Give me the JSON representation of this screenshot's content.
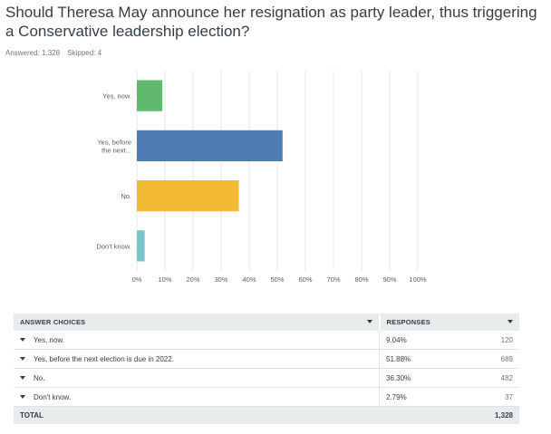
{
  "question": "Should Theresa May announce her resignation as party leader, thus triggering a Conservative leadership election?",
  "meta": {
    "answered": "Answered: 1,328",
    "skipped": "Skipped: 4"
  },
  "colors": {
    "yes_now": "#61b96e",
    "yes_before": "#507cb6",
    "no": "#f3bb33",
    "dont_know": "#76c5cb",
    "grid": "#e4e7e8"
  },
  "chart_data": {
    "type": "bar",
    "orientation": "horizontal",
    "categories": [
      [
        "Yes, now."
      ],
      [
        "Yes, before",
        "the next..."
      ],
      [
        "No."
      ],
      [
        "Don't know."
      ]
    ],
    "values": [
      9.04,
      51.88,
      36.3,
      2.79
    ],
    "colors": [
      "#61b96e",
      "#507cb6",
      "#f3bb33",
      "#76c5cb"
    ],
    "xlim": [
      0,
      100
    ],
    "xticks": [
      "0%",
      "10%",
      "20%",
      "30%",
      "40%",
      "50%",
      "60%",
      "70%",
      "80%",
      "90%",
      "100%"
    ],
    "grid": true
  },
  "table": {
    "header_choices": "ANSWER CHOICES",
    "header_responses": "RESPONSES",
    "rows": [
      {
        "choice": "Yes, now.",
        "pct": "9.04%",
        "count": "120"
      },
      {
        "choice": "Yes, before the next election is due in 2022.",
        "pct": "51.88%",
        "count": "689"
      },
      {
        "choice": "No.",
        "pct": "36.30%",
        "count": "482"
      },
      {
        "choice": "Don't know.",
        "pct": "2.79%",
        "count": "37"
      }
    ],
    "total_label": "TOTAL",
    "total_count": "1,328"
  }
}
